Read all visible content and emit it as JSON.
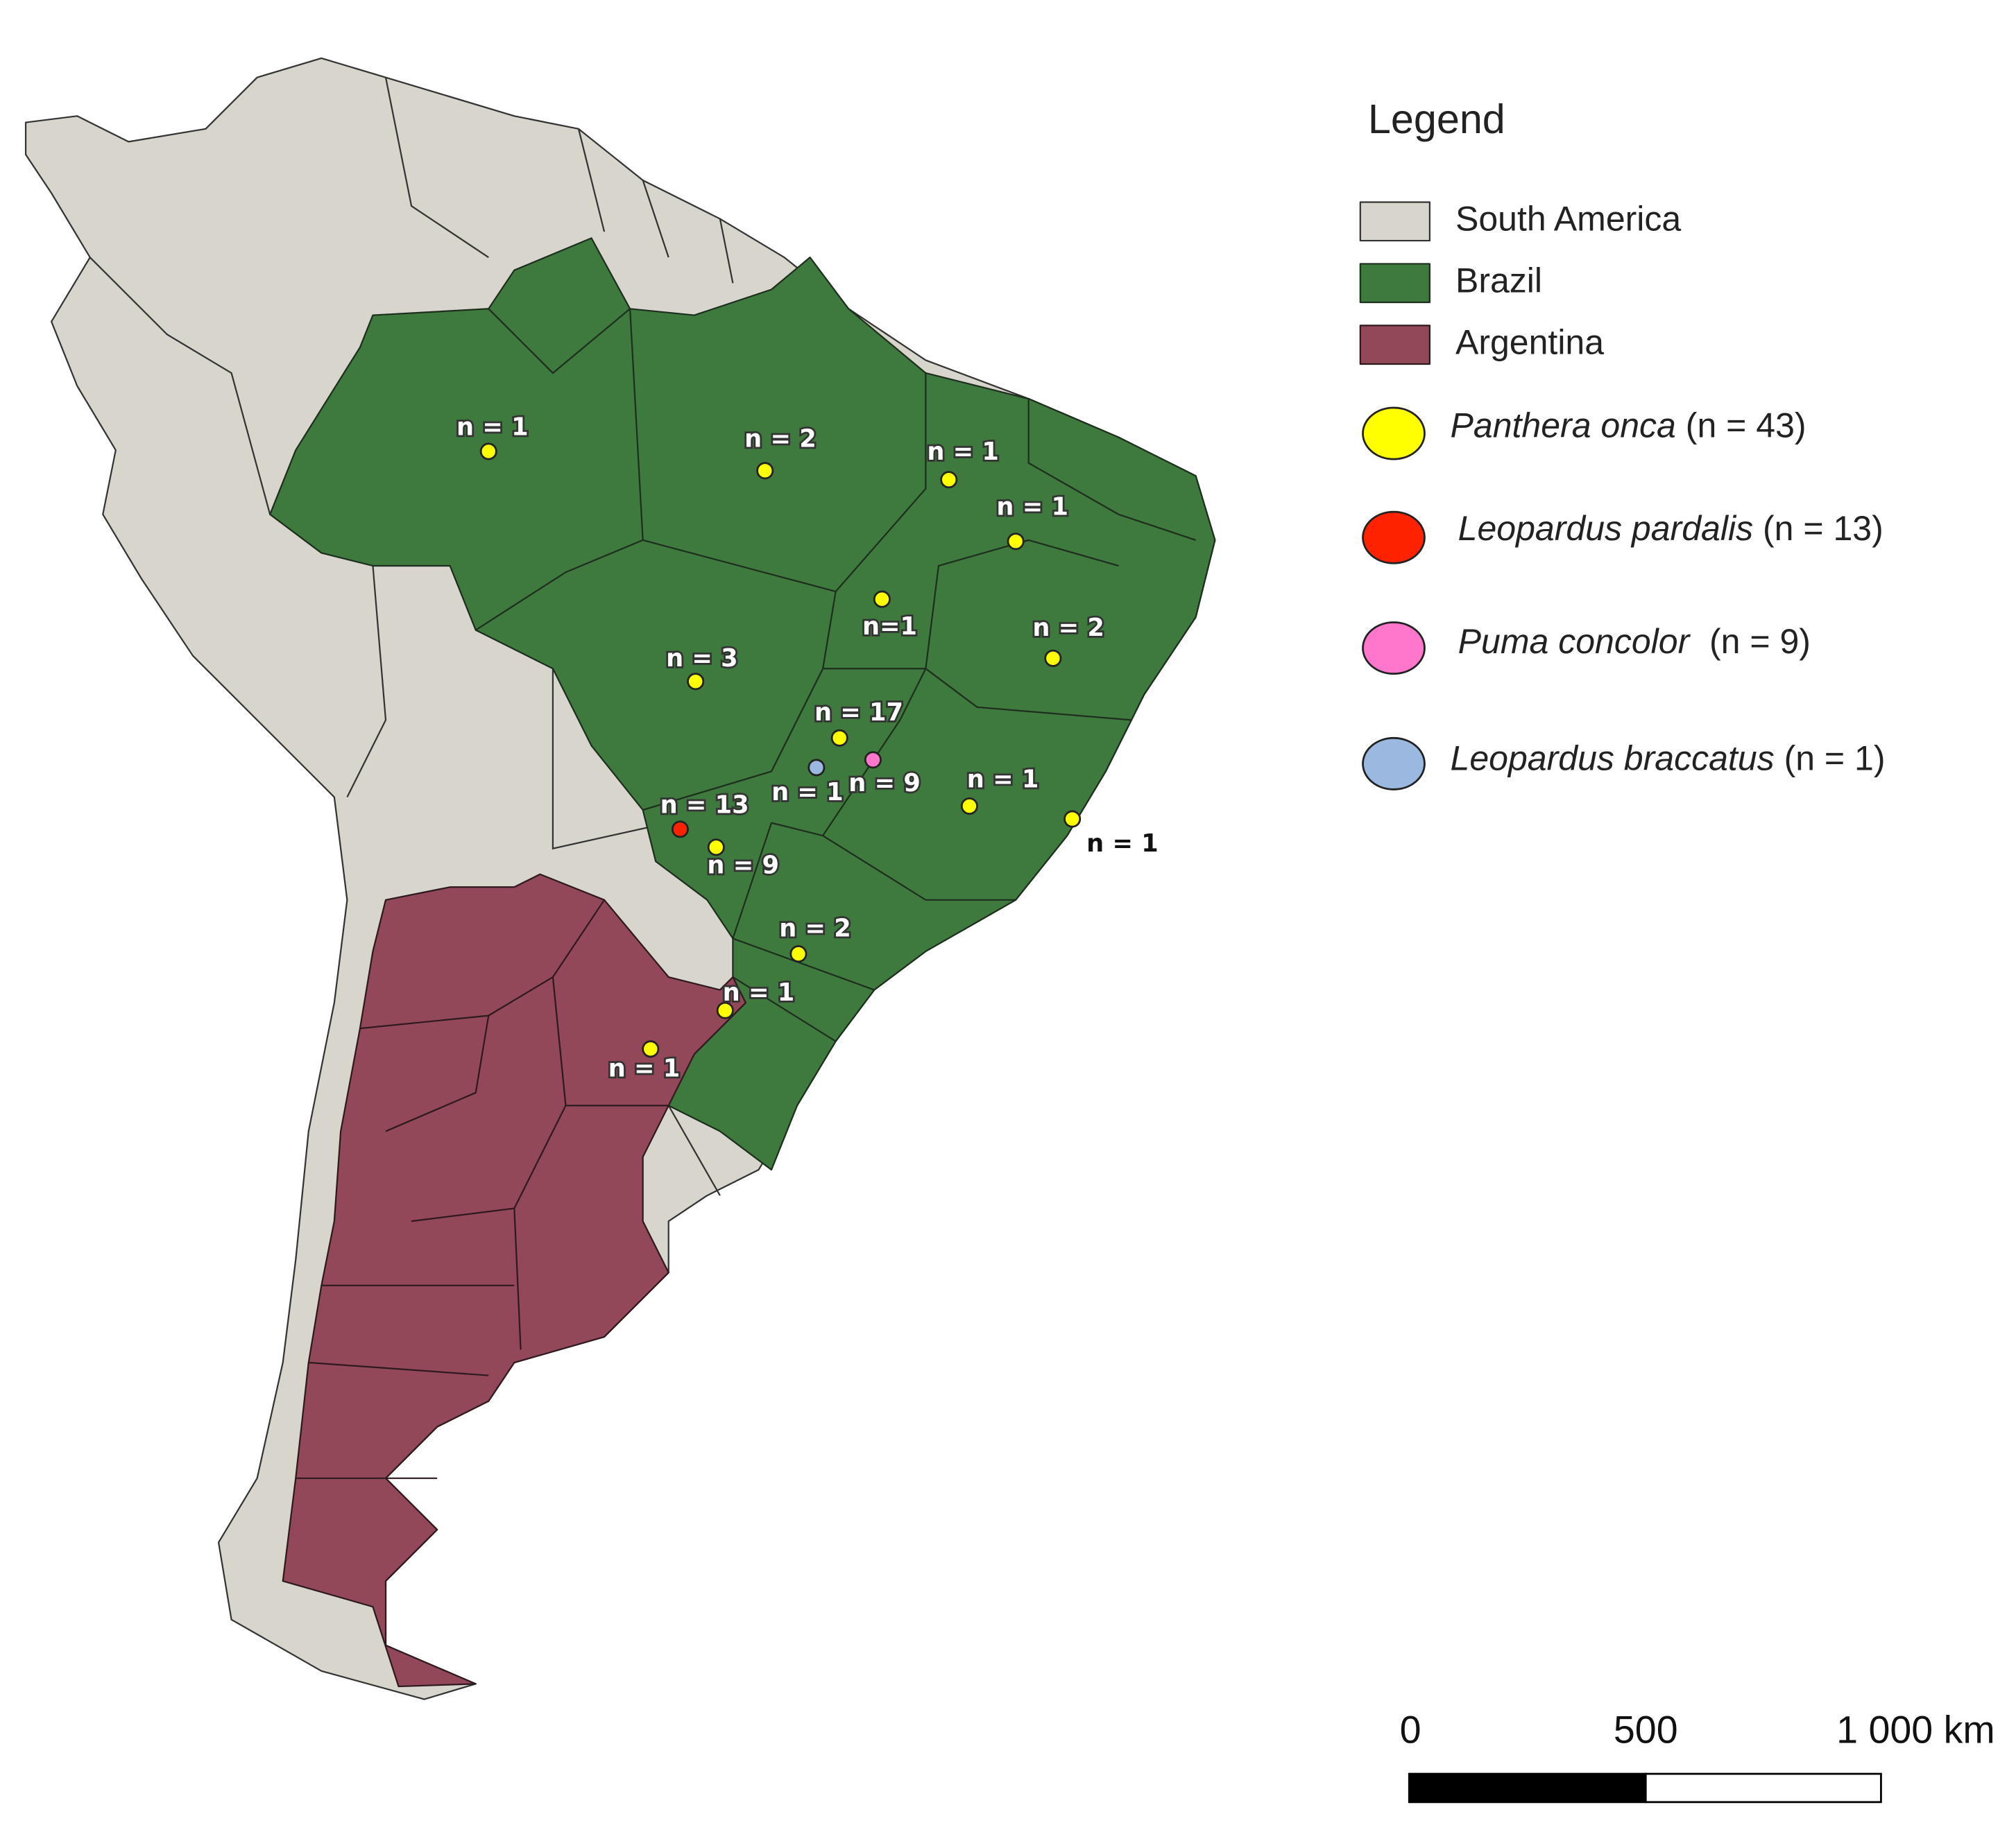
{
  "legend": {
    "title": "Legend",
    "areas": [
      "South America",
      "Brazil",
      "Argentina"
    ],
    "species": [
      {
        "name": "Panthera onca",
        "count": "(n = 43)"
      },
      {
        "name": "Leopardus pardalis",
        "count": "(n = 13)"
      },
      {
        "name": "Puma concolor",
        "count": "(n = 9)"
      },
      {
        "name": "Leopardus braccatus",
        "count": "(n = 1)"
      }
    ]
  },
  "map_labels": [
    "n = 1",
    "n = 2",
    "n = 1",
    "n = 1",
    "n=1",
    "n = 2",
    "n = 3",
    "n = 17",
    "n = 9",
    "n = 1",
    "n = 1",
    "n = 1",
    "n = 13",
    "n = 9",
    "n = 2",
    "n = 1",
    "n = 1"
  ],
  "scale_bar": {
    "labels": [
      "0",
      "500",
      "1 000 km"
    ]
  }
}
